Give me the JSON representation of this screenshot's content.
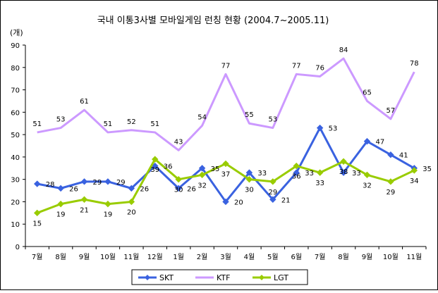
{
  "chart_data": {
    "type": "line",
    "title": "국내 이통3사별 모바일게임 런칭 현황 (2004.7~2005.11)",
    "ylabel": "(개)",
    "xlabel": "",
    "ylim": [
      0,
      90
    ],
    "yticks": [
      0,
      10,
      20,
      30,
      40,
      50,
      60,
      70,
      80,
      90
    ],
    "grid": false,
    "legend_position": "bottom-center",
    "categories": [
      "7월",
      "8월",
      "9월",
      "10월",
      "11월",
      "12월",
      "1월",
      "2월",
      "3월",
      "4월",
      "5월",
      "6월",
      "7월",
      "8월",
      "9월",
      "10월",
      "11월"
    ],
    "series": [
      {
        "name": "SKT",
        "color": "#3a62e0",
        "marker": "diamond",
        "values": [
          28,
          26,
          29,
          29,
          26,
          36,
          26,
          35,
          20,
          33,
          21,
          33,
          53,
          33,
          47,
          41,
          35
        ]
      },
      {
        "name": "KTF",
        "color": "#cc99ff",
        "marker": "none",
        "values": [
          51,
          53,
          61,
          51,
          52,
          51,
          43,
          54,
          77,
          55,
          53,
          77,
          76,
          84,
          65,
          57,
          78
        ]
      },
      {
        "name": "LGT",
        "color": "#99cc00",
        "marker": "diamond",
        "values": [
          15,
          19,
          21,
          19,
          20,
          39,
          30,
          32,
          37,
          30,
          29,
          36,
          33,
          38,
          32,
          29,
          34
        ]
      }
    ]
  }
}
